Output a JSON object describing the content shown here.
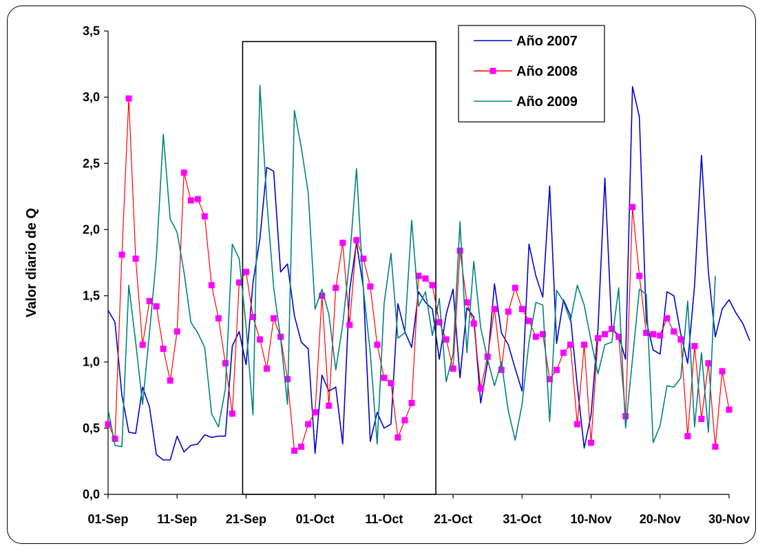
{
  "chart_data": {
    "type": "line",
    "ylabel": "Valor diario de Q",
    "xlabel": "",
    "ylim": [
      0,
      3.5
    ],
    "y_ticks": [
      "0,0",
      "0,5",
      "1,0",
      "1,5",
      "2,0",
      "2,5",
      "3,0",
      "3,5"
    ],
    "x_tick_labels": [
      "01-Sep",
      "11-Sep",
      "21-Sep",
      "01-Oct",
      "11-Oct",
      "21-Oct",
      "31-Oct",
      "10-Nov",
      "20-Nov",
      "30-Nov"
    ],
    "x_range_days": [
      0,
      90
    ],
    "highlight_box": {
      "x_start_day": 19.5,
      "x_end_day": 47.5,
      "y_top": 3.42,
      "y_bottom": 0
    },
    "legend_position": "top-right",
    "series": [
      {
        "name": "Año 2007",
        "color": "#0000cc",
        "marker": "none",
        "values": [
          1.39,
          1.3,
          0.75,
          0.47,
          0.46,
          0.81,
          0.66,
          0.3,
          0.26,
          0.26,
          0.44,
          0.32,
          0.37,
          0.38,
          0.45,
          0.43,
          0.44,
          0.44,
          1.12,
          1.23,
          0.98,
          1.6,
          1.93,
          2.47,
          2.44,
          1.68,
          1.74,
          1.35,
          1.15,
          1.1,
          0.31,
          0.9,
          0.78,
          0.81,
          0.38,
          1.54,
          1.9,
          1.56,
          0.4,
          0.62,
          0.5,
          0.53,
          1.44,
          1.23,
          1.11,
          1.53,
          1.45,
          1.4,
          1.02,
          1.36,
          1.55,
          0.88,
          1.41,
          1.34,
          0.69,
          1.0,
          1.59,
          1.22,
          1.13,
          0.95,
          0.78,
          1.89,
          1.65,
          1.49,
          2.33,
          1.14,
          1.47,
          1.35,
          0.82,
          0.35,
          0.6,
          1.25,
          2.39,
          1.25,
          1.2,
          1.02,
          3.08,
          2.85,
          1.31,
          1.09,
          1.06,
          1.53,
          1.5,
          1.21,
          0.99,
          1.58,
          2.56,
          1.68,
          1.19,
          1.4,
          1.47,
          1.37,
          1.29,
          1.16
        ]
      },
      {
        "name": "Año 2008",
        "color": "#ff0000",
        "marker": "square",
        "marker_color": "#ff00ff",
        "values": [
          0.53,
          0.42,
          1.81,
          2.99,
          1.78,
          1.13,
          1.46,
          1.42,
          1.1,
          0.86,
          1.23,
          2.43,
          2.22,
          2.23,
          2.1,
          1.58,
          1.33,
          0.99,
          0.61,
          1.6,
          1.68,
          1.34,
          1.17,
          0.95,
          1.33,
          1.19,
          0.87,
          0.33,
          0.36,
          0.53,
          0.62,
          1.5,
          0.67,
          1.56,
          1.9,
          1.28,
          1.92,
          1.78,
          1.57,
          1.13,
          0.88,
          0.84,
          0.43,
          0.56,
          0.69,
          1.65,
          1.63,
          1.58,
          1.3,
          1.17,
          0.95,
          1.84,
          1.45,
          1.29,
          0.8,
          1.04,
          1.4,
          0.94,
          1.38,
          1.56,
          1.4,
          1.31,
          1.19,
          1.21,
          0.87,
          0.94,
          1.07,
          1.13,
          0.53,
          1.13,
          0.39,
          1.18,
          1.21,
          1.25,
          1.19,
          0.59,
          2.17,
          1.65,
          1.22,
          1.21,
          1.2,
          1.33,
          1.23,
          1.17,
          0.44,
          1.12,
          0.57,
          0.99,
          0.36,
          0.93,
          0.64
        ]
      },
      {
        "name": "Año 2009",
        "color": "#008080",
        "marker": "none",
        "values": [
          0.64,
          0.37,
          0.36,
          1.58,
          1.15,
          0.68,
          1.22,
          1.79,
          2.72,
          2.08,
          1.98,
          1.68,
          1.3,
          1.22,
          1.11,
          0.61,
          0.51,
          0.8,
          1.89,
          1.78,
          1.27,
          0.6,
          3.09,
          2.22,
          1.56,
          1.18,
          0.68,
          2.9,
          2.62,
          2.28,
          1.4,
          1.55,
          1.36,
          0.94,
          1.28,
          1.77,
          2.46,
          1.55,
          1.07,
          0.38,
          1.44,
          1.82,
          1.18,
          1.22,
          2.07,
          1.42,
          1.53,
          1.2,
          1.48,
          0.85,
          1.06,
          2.06,
          1.07,
          1.76,
          1.26,
          1.02,
          0.82,
          1.0,
          0.63,
          0.41,
          0.68,
          1.15,
          1.45,
          1.43,
          0.55,
          1.54,
          1.46,
          1.31,
          1.58,
          1.43,
          1.16,
          0.91,
          1.13,
          1.15,
          1.56,
          0.5,
          1.02,
          1.55,
          1.51,
          0.39,
          0.52,
          0.82,
          0.81,
          0.88,
          1.46,
          0.51,
          1.07,
          0.47,
          1.65
        ]
      }
    ]
  }
}
